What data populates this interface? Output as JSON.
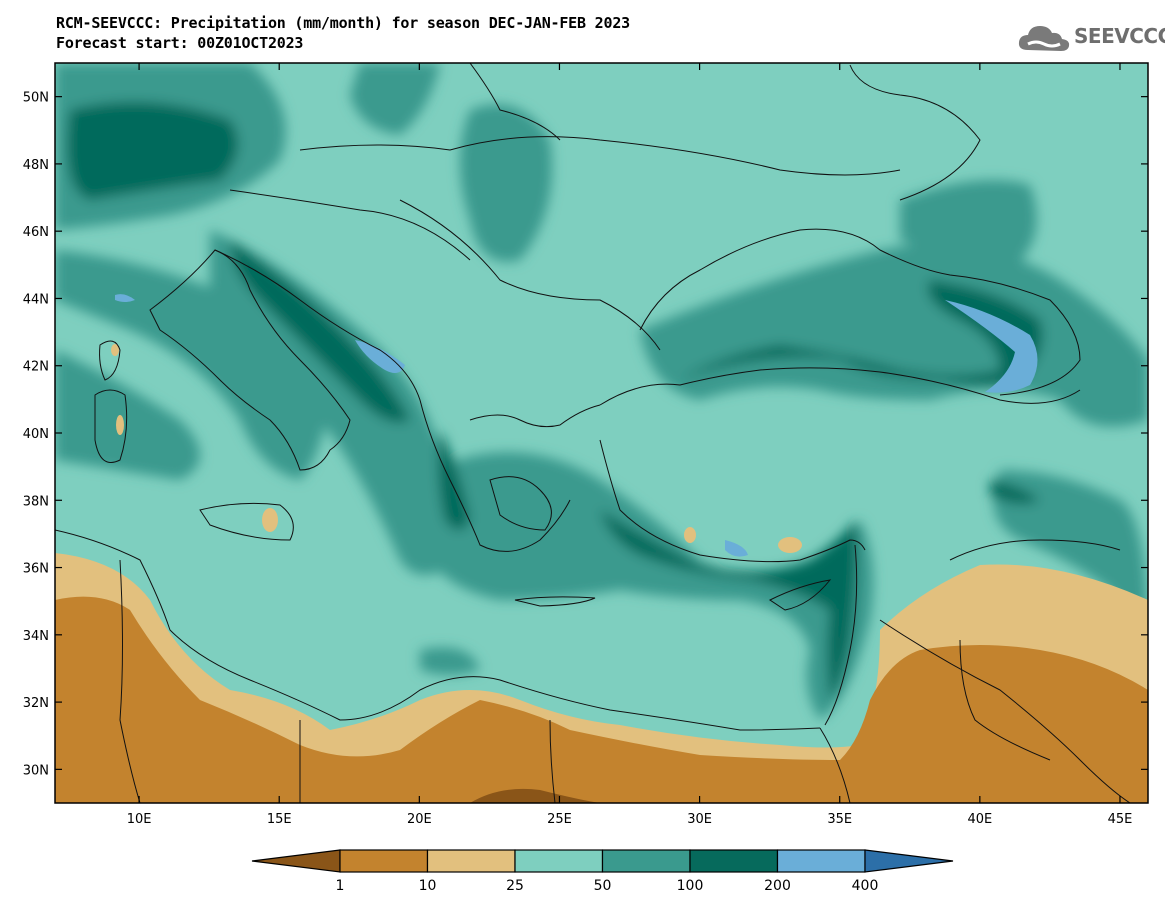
{
  "header": {
    "title": "RCM-SEEVCCC: Precipitation (mm/month) for season DEC-JAN-FEB 2023",
    "subtitle": "Forecast start: 00Z01OCT2023",
    "logo_text": "SEEVCCC"
  },
  "map": {
    "lon_range": [
      7,
      46
    ],
    "lat_range": [
      29,
      51
    ],
    "lon_ticks": [
      "10E",
      "15E",
      "20E",
      "25E",
      "30E",
      "35E",
      "40E",
      "45E"
    ],
    "lat_ticks": [
      "50N",
      "48N",
      "46N",
      "44N",
      "42N",
      "40N",
      "38N",
      "36N",
      "34N",
      "32N",
      "30N"
    ]
  },
  "colorbar": {
    "levels": [
      "1",
      "10",
      "25",
      "50",
      "100",
      "200",
      "400"
    ],
    "colors": [
      "#8a5518",
      "#c3832e",
      "#e2c07e",
      "#7ecfbf",
      "#3a9a8e",
      "#066a5c",
      "#6aaed8",
      "#2c6fa8"
    ]
  }
}
